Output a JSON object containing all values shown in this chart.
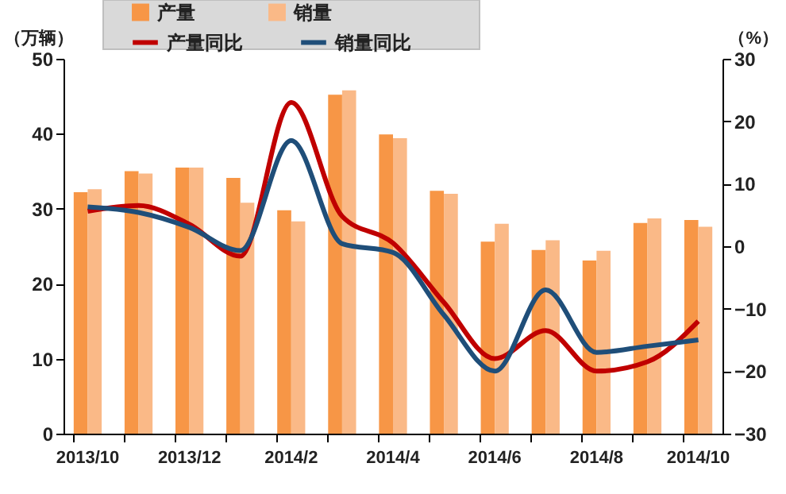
{
  "chart_data": {
    "type": "bar",
    "ylabel": "（万辆）",
    "y2label": "（%）",
    "categories": [
      "2013/10",
      null,
      "2013/12",
      null,
      "2014/2",
      null,
      "2014/4",
      null,
      "2014/6",
      null,
      "2014/8",
      null,
      "2014/10"
    ],
    "series": [
      {
        "name": "产量",
        "type": "bar",
        "color": "#f79646",
        "values": [
          32.2,
          35,
          35.5,
          34.1,
          29.8,
          45.2,
          39.9,
          32.4,
          25.6,
          24.5,
          23.1,
          28.1,
          28.5
        ]
      },
      {
        "name": "销量",
        "type": "bar",
        "color": "#fab987",
        "values": [
          32.6,
          34.7,
          35.5,
          30.8,
          28.3,
          45.8,
          39.4,
          32.0,
          28.0,
          25.8,
          24.4,
          28.7,
          27.6
        ]
      },
      {
        "name": "产量同比",
        "type": "line",
        "axis": "y2",
        "color": "#c00000",
        "values": [
          5.6,
          6.5,
          3.5,
          -1.6,
          23,
          4.8,
          0.5,
          -9,
          -18,
          -13.5,
          -20,
          -18.5,
          -12
        ]
      },
      {
        "name": "销量同比",
        "type": "line",
        "axis": "y2",
        "color": "#1f4e79",
        "values": [
          6.3,
          5.4,
          3,
          -0.7,
          16.9,
          0.4,
          -1,
          -11,
          -20,
          -7,
          -17,
          -16,
          -15
        ]
      }
    ],
    "ylim": [
      0,
      50
    ],
    "yticks": [
      0,
      10,
      20,
      30,
      40,
      50
    ],
    "y2lim": [
      -30,
      30
    ],
    "y2ticks": [
      -30,
      -20,
      -10,
      0,
      10,
      20,
      30
    ],
    "grid": false,
    "legend": "top",
    "line_style": "solid",
    "marker": "none"
  }
}
